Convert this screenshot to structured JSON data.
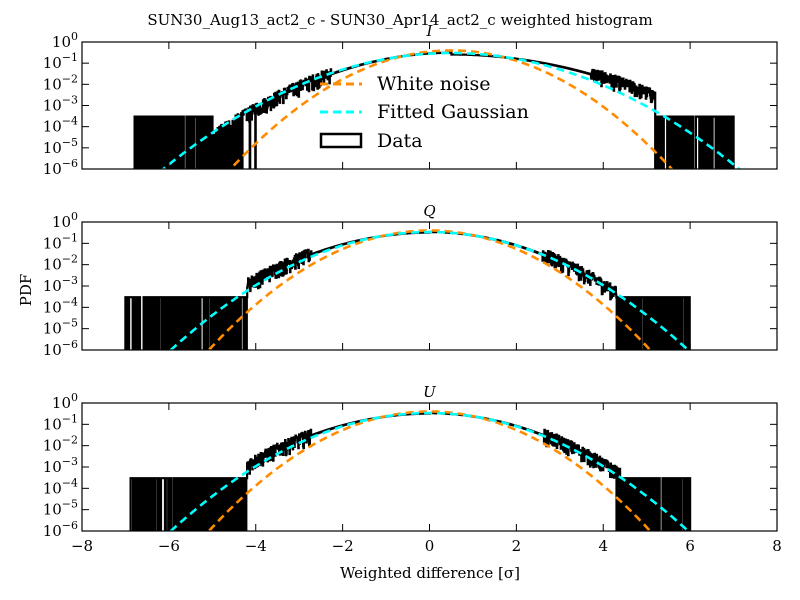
{
  "figure": {
    "title": "SUN30_Aug13_act2_c - SUN30_Apr14_act2_c weighted histogram",
    "xlabel": "Weighted difference [σ]",
    "ylabel": "PDF"
  },
  "legend": {
    "entries": [
      {
        "label": "White noise",
        "color": "#ff8c00",
        "style": "dashed"
      },
      {
        "label": "Fitted Gaussian",
        "color": "#00ffff",
        "style": "dashed"
      },
      {
        "label": "Data",
        "color": "#000000",
        "style": "box"
      }
    ],
    "placement": "center (panel I)"
  },
  "colors": {
    "white_noise": "#ff8c00",
    "fitted_gaussian": "#00ffff",
    "data": "#000000"
  },
  "chart_data": [
    {
      "type": "line",
      "title": "I",
      "yscale": "log",
      "xlim": [
        -8,
        8
      ],
      "ylim": [
        1e-06,
        1
      ],
      "xticks": [
        "−8",
        "−4",
        "−2",
        "0",
        "2",
        "4",
        "6",
        "8"
      ],
      "series": [
        {
          "name": "White noise",
          "kind": "gaussian",
          "mu": 0.5,
          "sigma": 1.0
        },
        {
          "name": "Fitted Gaussian",
          "kind": "gaussian",
          "mu": 0.5,
          "sigma": 1.32
        },
        {
          "name": "Data",
          "kind": "histogram",
          "mu": 0.5,
          "sigma_left": 1.28,
          "sigma_right": 1.55,
          "range": [
            -6.8,
            7.0
          ],
          "sparse_below": -5.0,
          "sparse_above": 5.2
        }
      ],
      "grid": false
    },
    {
      "type": "line",
      "title": "Q",
      "yscale": "log",
      "xlim": [
        -8,
        8
      ],
      "ylim": [
        1e-06,
        1
      ],
      "series": [
        {
          "name": "White noise",
          "kind": "gaussian",
          "mu": 0.0,
          "sigma": 1.0
        },
        {
          "name": "Fitted Gaussian",
          "kind": "gaussian",
          "mu": 0.0,
          "sigma": 1.18
        },
        {
          "name": "Data",
          "kind": "histogram",
          "mu": 0.0,
          "sigma_left": 1.25,
          "sigma_right": 1.18,
          "range": [
            -7.0,
            6.0
          ],
          "sparse_below": -4.2,
          "sparse_above": 4.3
        }
      ],
      "grid": false
    },
    {
      "type": "line",
      "title": "U",
      "yscale": "log",
      "xlim": [
        -8,
        8
      ],
      "ylim": [
        1e-06,
        1
      ],
      "xticks": [
        "−8",
        "−6",
        "−4",
        "−2",
        "0",
        "2",
        "4",
        "6",
        "8"
      ],
      "series": [
        {
          "name": "White noise",
          "kind": "gaussian",
          "mu": 0.0,
          "sigma": 1.0
        },
        {
          "name": "Fitted Gaussian",
          "kind": "gaussian",
          "mu": 0.0,
          "sigma": 1.18
        },
        {
          "name": "Data",
          "kind": "histogram",
          "mu": 0.0,
          "sigma_left": 1.25,
          "sigma_right": 1.2,
          "range": [
            -6.9,
            6.0
          ],
          "sparse_below": -4.2,
          "sparse_above": 4.4
        }
      ],
      "grid": false
    }
  ]
}
